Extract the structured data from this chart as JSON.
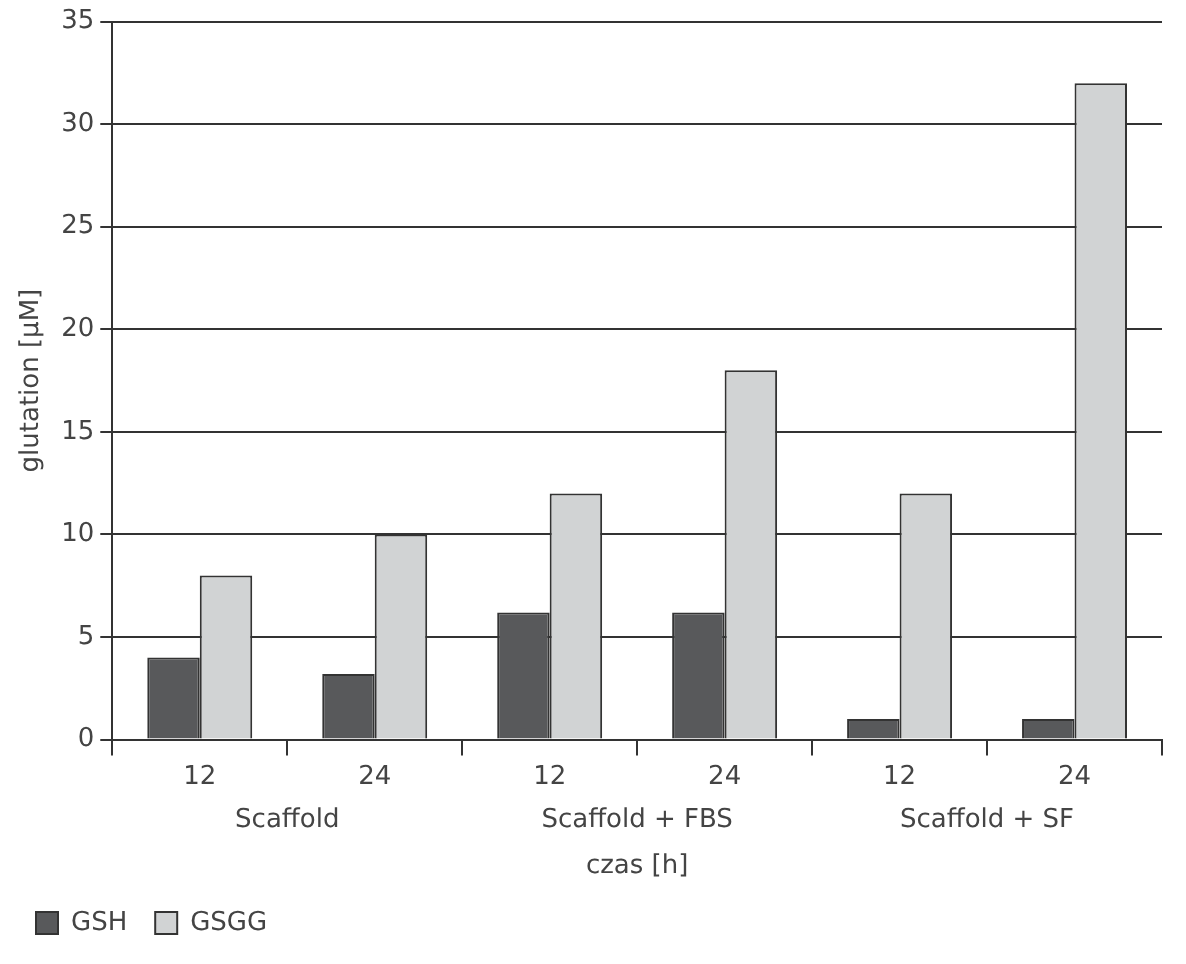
{
  "chart_data": {
    "type": "bar",
    "ylabel": "glutation [µM]",
    "xlabel": "czas [h]",
    "categories": [
      "12",
      "24",
      "12",
      "24",
      "12",
      "24"
    ],
    "annotations": [
      "Scaffold",
      "Scaffold + FBS",
      "Scaffold + SF"
    ],
    "series": [
      {
        "name": "GSH",
        "color": "#58595b",
        "values": [
          4,
          3.2,
          6.2,
          6.2,
          1,
          1
        ]
      },
      {
        "name": "GSGG",
        "color": "#d1d3d4",
        "values": [
          8,
          10,
          12,
          18,
          12,
          32
        ]
      }
    ],
    "ylim": [
      0,
      35
    ],
    "yticks": [
      0,
      5,
      10,
      15,
      20,
      25,
      30,
      35
    ],
    "grid": "y",
    "legend": "bottom left"
  }
}
